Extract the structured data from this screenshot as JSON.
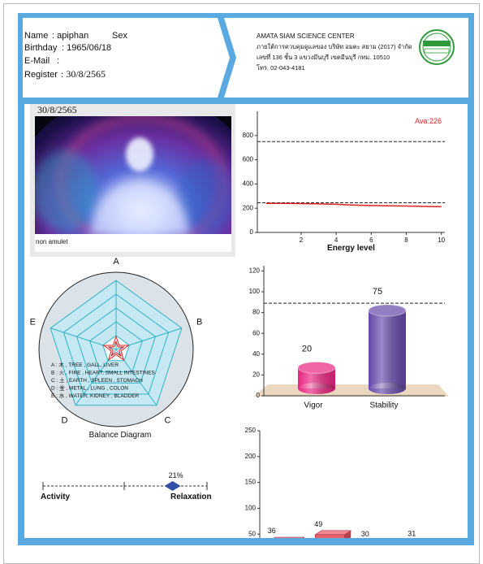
{
  "header": {
    "name_label": "Name",
    "name": ": apiphan",
    "sex_label": "Sex",
    "birthday_label": "Birthday",
    "birthday": ": 1965/06/18",
    "email_label": "E-Mail",
    "email": ":",
    "register_label": "Register",
    "register": ": 30/8/2565"
  },
  "company": {
    "name": "AMATA SIAM SCIENCE CENTER",
    "line1": "ภายใต้การควบคุมดูแลของ บริษัท อมตะ สยาม (2017) จำกัด",
    "line2": "เลขที่ 136 ชั้น 3 แขวงมีนบุรี เขตมีนบุรี กทม. 10510",
    "phone": "โทร. 02-043-4181"
  },
  "photo": {
    "date": "30/8/2565",
    "caption": "non amulet"
  },
  "chart_data": [
    {
      "type": "line",
      "annotation": "Ava:226",
      "xlabel": "Energy level",
      "x": [
        0,
        1,
        2,
        3,
        4,
        5,
        6,
        7,
        8,
        9,
        10
      ],
      "series": [
        {
          "color": "#e02020",
          "values": [
            240,
            240,
            238,
            236,
            232,
            226,
            222,
            220,
            218,
            215,
            212
          ]
        }
      ],
      "xlim": [
        -0.5,
        10.2
      ],
      "ylim": [
        0,
        1000
      ],
      "xticks": [
        2,
        4,
        6,
        8,
        10
      ],
      "yticks": [
        0,
        200,
        400,
        600,
        800
      ],
      "reference_lines": [
        750,
        245
      ]
    },
    {
      "type": "radar",
      "title": "Balance Diagram",
      "categories": [
        "A",
        "B",
        "C",
        "D",
        "E"
      ],
      "values": [
        15,
        15,
        15,
        15,
        15
      ],
      "rlim": [
        0,
        100
      ],
      "rticks": [
        20,
        40,
        60,
        80,
        100
      ],
      "color": "#e02020",
      "legend": [
        "A : 木 , TREE , GALL, LIVER",
        "B : 火 , FIRE , HEART, SMALL INTESTINES",
        "C : 土 , EARTH , SPLEEN , STOMACH",
        "D : 金 , METAL , LUNG , COLON",
        "E : 水 , WATER, KIDNEY , BLADDER"
      ]
    },
    {
      "type": "cylinder",
      "categories": [
        "Vigor",
        "Stability"
      ],
      "values": [
        20,
        75
      ],
      "colors": [
        "#e8237f",
        "#6547a8"
      ],
      "ylim": [
        0,
        125
      ],
      "yticks": [
        0,
        20,
        40,
        60,
        80,
        100,
        120
      ],
      "reference_lines": [
        89
      ]
    },
    {
      "type": "slider",
      "left_label": "Activity",
      "right_label": "Relaxation",
      "value": 21,
      "value_label": "21%",
      "xlim": [
        100,
        0
      ],
      "color": "#2f4fa8"
    },
    {
      "type": "bar3d",
      "categories": [
        null,
        null,
        null,
        null
      ],
      "values": [
        36,
        49,
        30,
        31
      ],
      "color": "#e8606a",
      "ylim": [
        0,
        250
      ],
      "yticks": [
        50,
        100,
        150,
        200,
        250
      ]
    }
  ]
}
